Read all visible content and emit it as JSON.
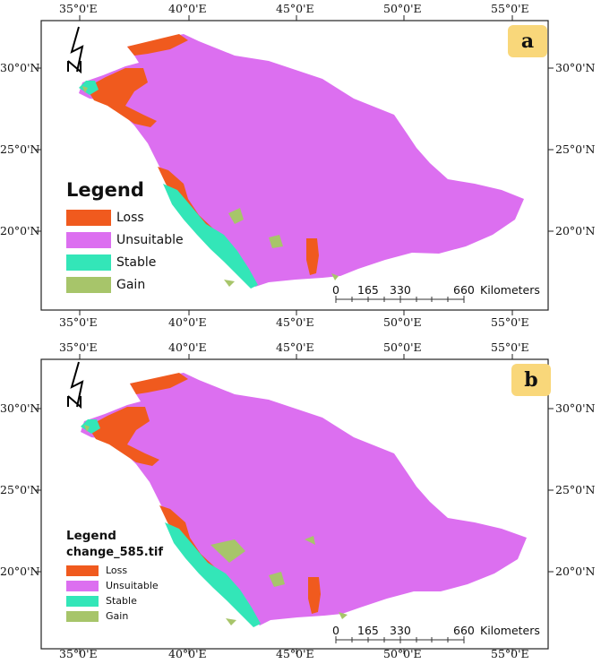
{
  "colors": {
    "loss": "#f05a1e",
    "unsuitable": "#dc6ff0",
    "stable": "#33e6b8",
    "gain": "#a7c56a",
    "badge": "#f9d77a"
  },
  "panels": [
    {
      "letter": "a",
      "lon_labels": [
        "35°0'E",
        "40°0'E",
        "45°0'E",
        "50°0'E",
        "55°0'E"
      ],
      "lat_labels": [
        "30°0'N",
        "25°0'N",
        "20°0'N"
      ],
      "legend": {
        "title": "Legend",
        "subtitle": "",
        "items": [
          {
            "label": "Loss",
            "class": "loss"
          },
          {
            "label": "Unsuitable",
            "class": "unsuitable"
          },
          {
            "label": "Stable",
            "class": "stable"
          },
          {
            "label": "Gain",
            "class": "gain"
          }
        ]
      },
      "scale": {
        "ticks": [
          "0",
          "165",
          "330",
          "660"
        ],
        "unit": "Kilometers"
      }
    },
    {
      "letter": "b",
      "lon_labels": [
        "35°0'E",
        "40°0'E",
        "45°0'E",
        "50°0'E",
        "55°0'E"
      ],
      "lat_labels": [
        "30°0'N",
        "25°0'N",
        "20°0'N"
      ],
      "legend": {
        "title": "Legend",
        "subtitle": "change_585.tif",
        "items": [
          {
            "label": "Loss",
            "class": "loss"
          },
          {
            "label": "Unsuitable",
            "class": "unsuitable"
          },
          {
            "label": "Stable",
            "class": "stable"
          },
          {
            "label": "Gain",
            "class": "gain"
          }
        ]
      },
      "scale": {
        "ticks": [
          "0",
          "165",
          "330",
          "660"
        ],
        "unit": "Kilometers"
      }
    }
  ]
}
